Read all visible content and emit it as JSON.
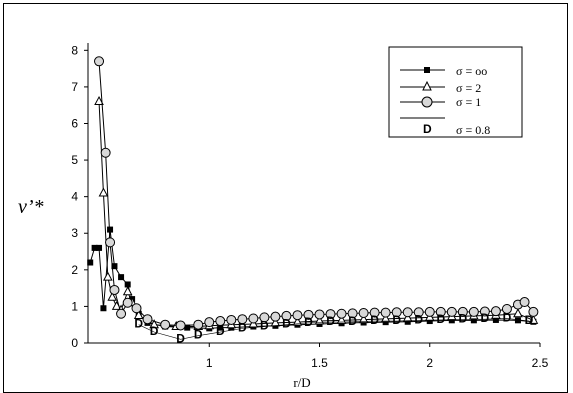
{
  "chart_data": {
    "type": "line",
    "xlabel": "r/D",
    "ylabel": "ν’*",
    "xlim": [
      0.45,
      2.5
    ],
    "ylim": [
      0,
      8.2
    ],
    "x_ticks": [
      "1",
      "1.5",
      "2",
      "2.5"
    ],
    "y_ticks": [
      "0",
      "1",
      "2",
      "3",
      "4",
      "5",
      "6",
      "7",
      "8"
    ],
    "grid": false,
    "legend_position": "top-right",
    "series": [
      {
        "name": "σ = oo",
        "marker": "filled-square",
        "points": [
          [
            0.46,
            2.2
          ],
          [
            0.48,
            2.6
          ],
          [
            0.5,
            2.6
          ],
          [
            0.52,
            0.95
          ],
          [
            0.55,
            3.1
          ],
          [
            0.57,
            2.1
          ],
          [
            0.6,
            1.8
          ],
          [
            0.63,
            1.6
          ],
          [
            0.65,
            1.2
          ],
          [
            0.68,
            0.8
          ],
          [
            0.72,
            0.55
          ],
          [
            0.8,
            0.45
          ],
          [
            0.9,
            0.42
          ],
          [
            1.0,
            0.4
          ],
          [
            1.05,
            0.42
          ],
          [
            1.1,
            0.42
          ],
          [
            1.2,
            0.45
          ],
          [
            1.3,
            0.47
          ],
          [
            1.4,
            0.5
          ],
          [
            1.5,
            0.52
          ],
          [
            1.6,
            0.54
          ],
          [
            1.7,
            0.56
          ],
          [
            1.8,
            0.57
          ],
          [
            1.9,
            0.58
          ],
          [
            2.0,
            0.6
          ],
          [
            2.1,
            0.62
          ],
          [
            2.2,
            0.62
          ],
          [
            2.3,
            0.63
          ],
          [
            2.4,
            0.62
          ],
          [
            2.47,
            0.58
          ]
        ]
      },
      {
        "name": "σ = 2",
        "marker": "open-triangle",
        "points": [
          [
            0.5,
            6.6
          ],
          [
            0.52,
            4.1
          ],
          [
            0.54,
            1.8
          ],
          [
            0.56,
            1.25
          ],
          [
            0.58,
            1.0
          ],
          [
            0.6,
            0.9
          ],
          [
            0.63,
            1.4
          ],
          [
            0.65,
            1.1
          ],
          [
            0.68,
            0.75
          ],
          [
            0.75,
            0.5
          ],
          [
            0.85,
            0.45
          ],
          [
            0.95,
            0.45
          ],
          [
            1.0,
            0.47
          ],
          [
            1.1,
            0.5
          ],
          [
            1.2,
            0.52
          ],
          [
            1.3,
            0.55
          ],
          [
            1.4,
            0.57
          ],
          [
            1.5,
            0.6
          ],
          [
            1.6,
            0.62
          ],
          [
            1.7,
            0.64
          ],
          [
            1.8,
            0.66
          ],
          [
            1.9,
            0.68
          ],
          [
            2.0,
            0.7
          ],
          [
            2.1,
            0.72
          ],
          [
            2.2,
            0.74
          ],
          [
            2.3,
            0.76
          ],
          [
            2.4,
            0.8
          ],
          [
            2.47,
            0.62
          ]
        ]
      },
      {
        "name": "σ = 1",
        "marker": "open-circle",
        "points": [
          [
            0.5,
            7.7
          ],
          [
            0.53,
            5.2
          ],
          [
            0.55,
            2.75
          ],
          [
            0.57,
            1.45
          ],
          [
            0.6,
            0.8
          ],
          [
            0.63,
            1.1
          ],
          [
            0.67,
            0.95
          ],
          [
            0.72,
            0.65
          ],
          [
            0.8,
            0.5
          ],
          [
            0.87,
            0.48
          ],
          [
            0.95,
            0.5
          ],
          [
            1.0,
            0.57
          ],
          [
            1.05,
            0.6
          ],
          [
            1.1,
            0.63
          ],
          [
            1.15,
            0.65
          ],
          [
            1.2,
            0.67
          ],
          [
            1.25,
            0.7
          ],
          [
            1.3,
            0.72
          ],
          [
            1.35,
            0.74
          ],
          [
            1.4,
            0.76
          ],
          [
            1.45,
            0.77
          ],
          [
            1.5,
            0.78
          ],
          [
            1.55,
            0.79
          ],
          [
            1.6,
            0.8
          ],
          [
            1.65,
            0.81
          ],
          [
            1.7,
            0.82
          ],
          [
            1.75,
            0.83
          ],
          [
            1.8,
            0.83
          ],
          [
            1.85,
            0.84
          ],
          [
            1.9,
            0.84
          ],
          [
            1.95,
            0.84
          ],
          [
            2.0,
            0.85
          ],
          [
            2.05,
            0.85
          ],
          [
            2.1,
            0.85
          ],
          [
            2.15,
            0.85
          ],
          [
            2.2,
            0.85
          ],
          [
            2.25,
            0.86
          ],
          [
            2.3,
            0.87
          ],
          [
            2.35,
            0.93
          ],
          [
            2.4,
            1.05
          ],
          [
            2.43,
            1.12
          ],
          [
            2.47,
            0.85
          ]
        ]
      },
      {
        "name": "σ = 0.8",
        "marker": "letter-D",
        "points": [
          [
            0.68,
            0.5
          ],
          [
            0.75,
            0.3
          ],
          [
            0.87,
            0.1
          ],
          [
            0.95,
            0.2
          ],
          [
            1.05,
            0.3
          ],
          [
            1.15,
            0.4
          ],
          [
            1.25,
            0.45
          ],
          [
            1.35,
            0.5
          ],
          [
            1.45,
            0.55
          ],
          [
            1.55,
            0.57
          ],
          [
            1.65,
            0.58
          ],
          [
            1.75,
            0.6
          ],
          [
            1.85,
            0.6
          ],
          [
            1.95,
            0.62
          ],
          [
            2.05,
            0.63
          ],
          [
            2.15,
            0.64
          ],
          [
            2.25,
            0.65
          ],
          [
            2.35,
            0.67
          ],
          [
            2.45,
            0.6
          ]
        ]
      }
    ]
  }
}
